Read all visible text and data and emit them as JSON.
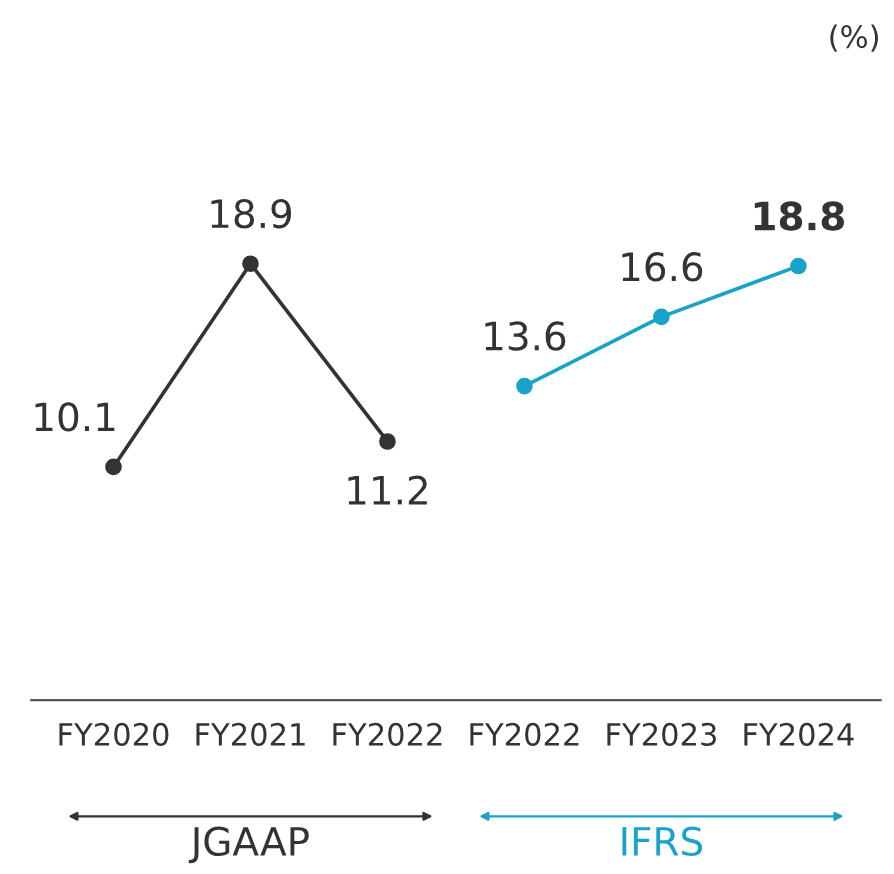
{
  "chart_data": {
    "type": "line",
    "annotations": [
      "(%)"
    ],
    "categories": [
      "FY2020",
      "FY2021",
      "FY2022",
      "FY2022",
      "FY2023",
      "FY2024"
    ],
    "series": [
      {
        "name": "JGAAP",
        "color": "#333333",
        "values": [
          10.1,
          18.9,
          11.2,
          null,
          null,
          null
        ]
      },
      {
        "name": "IFRS",
        "color": "#1aa3c8",
        "values": [
          null,
          null,
          null,
          13.6,
          16.6,
          18.8
        ]
      }
    ],
    "data_labels": true,
    "marker": "circle",
    "line_style": "solid",
    "grid": false,
    "legend": false
  }
}
